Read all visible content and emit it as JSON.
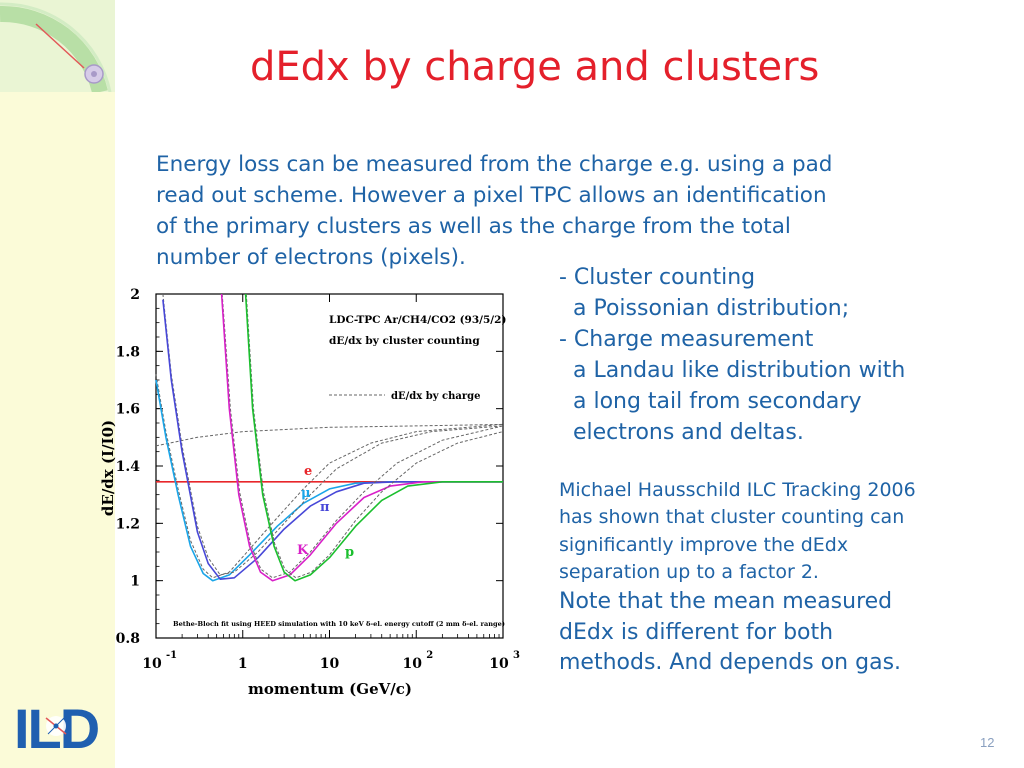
{
  "slide": {
    "title": "dEdx by charge and clusters",
    "intro": "Energy loss can be measured from the charge e.g. using a pad\nread out scheme. However a pixel TPC allows an identification\nof the primary clusters as well as the charge from the total\nnumber of electrons (pixels).",
    "notes": "- Cluster counting\n  a Poissonian distribution;\n- Charge measurement\n  a Landau like distribution with\n  a long tail from secondary\n  electrons and deltas.",
    "michael_note": "Michael Hausschild ILC Tracking 2006\nhas shown that cluster counting can\nsignificantly improve the dEdx\nseparation up to a factor 2.",
    "mean_note": "Note that the mean measured\ndEdx is different for both\nmethods. And depends on gas.",
    "page_number": "12",
    "logo_text": "ILD"
  },
  "chart_data": {
    "type": "line",
    "xlabel": "momentum (GeV/c)",
    "ylabel": "dE/dx (I/I0)",
    "x_scale": "log",
    "xlim": [
      0.1,
      1000
    ],
    "ylim": [
      0.8,
      2.0
    ],
    "x_ticks": [
      {
        "value": 0.1,
        "label": "10",
        "exp": "-1"
      },
      {
        "value": 1,
        "label": "1",
        "exp": ""
      },
      {
        "value": 10,
        "label": "10",
        "exp": ""
      },
      {
        "value": 100,
        "label": "10",
        "exp": "2"
      },
      {
        "value": 1000,
        "label": "10",
        "exp": "3"
      }
    ],
    "y_ticks": [
      0.8,
      1,
      1.2,
      1.4,
      1.6,
      1.8,
      2
    ],
    "y_tick_labels": [
      "0.8",
      "1",
      "1.2",
      "1.4",
      "1.6",
      "1.8",
      "2"
    ],
    "annotations": {
      "header_line1": "LDC-TPC Ar/CH4/CO2 (93/5/2)",
      "header_line2": "dE/dx by cluster counting",
      "legend_label": "dE/dx by charge",
      "footnote": "Bethe-Bloch fit using HEED simulation with 10 keV δ-el. energy cutoff (2 mm δ-el. range)"
    },
    "colors": {
      "e": "#e8262a",
      "mu": "#1aa5e8",
      "pi": "#4848d8",
      "K": "#d820c8",
      "p": "#1bbf2e",
      "charge": "#666666"
    },
    "series": [
      {
        "name": "e",
        "color": "#e8262a",
        "cluster": [
          [
            0.1,
            1.345
          ],
          [
            1000,
            1.345
          ]
        ],
        "charge": [
          [
            0.1,
            1.47
          ],
          [
            0.3,
            1.5
          ],
          [
            1,
            1.52
          ],
          [
            10,
            1.535
          ],
          [
            100,
            1.54
          ],
          [
            1000,
            1.545
          ]
        ]
      },
      {
        "name": "μ",
        "color": "#1aa5e8",
        "cluster": [
          [
            0.1,
            1.7
          ],
          [
            0.13,
            1.5
          ],
          [
            0.18,
            1.3
          ],
          [
            0.25,
            1.12
          ],
          [
            0.35,
            1.025
          ],
          [
            0.45,
            1.0
          ],
          [
            0.7,
            1.02
          ],
          [
            1.2,
            1.09
          ],
          [
            2.5,
            1.19
          ],
          [
            5,
            1.27
          ],
          [
            10,
            1.32
          ],
          [
            20,
            1.34
          ],
          [
            50,
            1.345
          ],
          [
            1000,
            1.345
          ]
        ],
        "charge": [
          [
            0.1,
            1.72
          ],
          [
            0.13,
            1.52
          ],
          [
            0.18,
            1.32
          ],
          [
            0.25,
            1.14
          ],
          [
            0.35,
            1.04
          ],
          [
            0.45,
            1.01
          ],
          [
            0.7,
            1.03
          ],
          [
            1.2,
            1.11
          ],
          [
            2.5,
            1.22
          ],
          [
            5,
            1.32
          ],
          [
            10,
            1.41
          ],
          [
            30,
            1.48
          ],
          [
            100,
            1.52
          ],
          [
            1000,
            1.545
          ]
        ]
      },
      {
        "name": "π",
        "color": "#4848d8",
        "cluster": [
          [
            0.12,
            1.98
          ],
          [
            0.15,
            1.7
          ],
          [
            0.2,
            1.45
          ],
          [
            0.3,
            1.17
          ],
          [
            0.4,
            1.06
          ],
          [
            0.55,
            1.005
          ],
          [
            0.8,
            1.01
          ],
          [
            1.5,
            1.08
          ],
          [
            3,
            1.18
          ],
          [
            6,
            1.26
          ],
          [
            12,
            1.31
          ],
          [
            25,
            1.34
          ],
          [
            60,
            1.345
          ],
          [
            1000,
            1.345
          ]
        ],
        "charge": [
          [
            0.12,
            2.0
          ],
          [
            0.15,
            1.72
          ],
          [
            0.2,
            1.47
          ],
          [
            0.3,
            1.19
          ],
          [
            0.4,
            1.08
          ],
          [
            0.55,
            1.02
          ],
          [
            0.8,
            1.03
          ],
          [
            1.5,
            1.1
          ],
          [
            3,
            1.2
          ],
          [
            6,
            1.3
          ],
          [
            12,
            1.39
          ],
          [
            40,
            1.48
          ],
          [
            150,
            1.52
          ],
          [
            1000,
            1.54
          ]
        ]
      },
      {
        "name": "K",
        "color": "#d820c8",
        "cluster": [
          [
            0.57,
            2.0
          ],
          [
            0.7,
            1.6
          ],
          [
            0.9,
            1.3
          ],
          [
            1.2,
            1.12
          ],
          [
            1.6,
            1.03
          ],
          [
            2.2,
            1.0
          ],
          [
            3.5,
            1.02
          ],
          [
            6,
            1.09
          ],
          [
            12,
            1.2
          ],
          [
            25,
            1.29
          ],
          [
            50,
            1.33
          ],
          [
            120,
            1.345
          ],
          [
            1000,
            1.345
          ]
        ],
        "charge": [
          [
            0.58,
            2.0
          ],
          [
            0.72,
            1.6
          ],
          [
            0.92,
            1.31
          ],
          [
            1.22,
            1.13
          ],
          [
            1.62,
            1.04
          ],
          [
            2.2,
            1.01
          ],
          [
            3.5,
            1.03
          ],
          [
            6,
            1.1
          ],
          [
            12,
            1.21
          ],
          [
            25,
            1.31
          ],
          [
            60,
            1.41
          ],
          [
            200,
            1.49
          ],
          [
            1000,
            1.54
          ]
        ]
      },
      {
        "name": "p",
        "color": "#1bbf2e",
        "cluster": [
          [
            1.08,
            2.0
          ],
          [
            1.3,
            1.6
          ],
          [
            1.7,
            1.3
          ],
          [
            2.3,
            1.12
          ],
          [
            3,
            1.03
          ],
          [
            4,
            1.0
          ],
          [
            6,
            1.02
          ],
          [
            10,
            1.08
          ],
          [
            20,
            1.19
          ],
          [
            40,
            1.28
          ],
          [
            80,
            1.33
          ],
          [
            200,
            1.345
          ],
          [
            1000,
            1.345
          ]
        ],
        "charge": [
          [
            1.1,
            2.0
          ],
          [
            1.33,
            1.6
          ],
          [
            1.73,
            1.31
          ],
          [
            2.33,
            1.13
          ],
          [
            3.05,
            1.04
          ],
          [
            4.1,
            1.01
          ],
          [
            6.2,
            1.03
          ],
          [
            10,
            1.09
          ],
          [
            20,
            1.21
          ],
          [
            40,
            1.31
          ],
          [
            100,
            1.41
          ],
          [
            300,
            1.48
          ],
          [
            1000,
            1.52
          ]
        ]
      }
    ]
  }
}
